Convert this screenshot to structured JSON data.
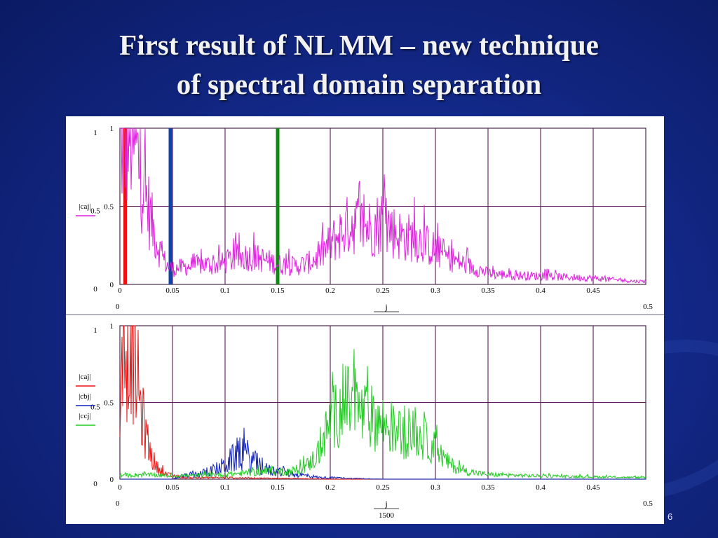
{
  "slide": {
    "title_line1": "First result of NL MM – new technique",
    "title_line2": "of spectral domain separation",
    "slide_number": "6"
  },
  "chart_data": [
    {
      "type": "line",
      "title": "",
      "xlabel": "j",
      "ylabel": "|caj|",
      "xlim": [
        0,
        0.5
      ],
      "ylim": [
        0,
        1
      ],
      "x_ticks": [
        "0",
        "0.05",
        "0.1",
        "0.15",
        "0.2",
        "0.25",
        "0.3",
        "0.35",
        "0.4",
        "0.45"
      ],
      "y_ticks": [
        "0",
        "0.5",
        "1"
      ],
      "y_outer_labels": [
        "0",
        "0.5",
        "1"
      ],
      "x_range_labels": [
        "0",
        "0.5"
      ],
      "grid": true,
      "legend": [
        {
          "label": "|caj|",
          "color": "#dd22dd"
        }
      ],
      "markers": [
        {
          "x": 0.005,
          "color": "#ee1111"
        },
        {
          "x": 0.048,
          "color": "#1144aa"
        },
        {
          "x": 0.15,
          "color": "#118811"
        }
      ],
      "series": [
        {
          "name": "|caj|",
          "color": "#dd22dd",
          "x": [
            0.005,
            0.01,
            0.015,
            0.02,
            0.025,
            0.03,
            0.035,
            0.04,
            0.045,
            0.05,
            0.06,
            0.07,
            0.08,
            0.09,
            0.1,
            0.11,
            0.12,
            0.13,
            0.14,
            0.15,
            0.16,
            0.17,
            0.18,
            0.19,
            0.2,
            0.21,
            0.22,
            0.23,
            0.24,
            0.25,
            0.26,
            0.27,
            0.28,
            0.29,
            0.3,
            0.31,
            0.32,
            0.33,
            0.34,
            0.35,
            0.37,
            0.39,
            0.41,
            0.43,
            0.45,
            0.47,
            0.49,
            0.5
          ],
          "y": [
            0.9,
            0.98,
            0.85,
            0.72,
            0.55,
            0.4,
            0.28,
            0.18,
            0.12,
            0.1,
            0.11,
            0.12,
            0.13,
            0.12,
            0.14,
            0.17,
            0.18,
            0.17,
            0.15,
            0.13,
            0.12,
            0.12,
            0.14,
            0.18,
            0.26,
            0.33,
            0.4,
            0.38,
            0.36,
            0.42,
            0.34,
            0.3,
            0.3,
            0.26,
            0.22,
            0.18,
            0.15,
            0.12,
            0.1,
            0.07,
            0.06,
            0.055,
            0.05,
            0.045,
            0.04,
            0.03,
            0.02,
            0.02
          ]
        }
      ]
    },
    {
      "type": "line",
      "title": "",
      "xlabel": "j",
      "xlabel_denominator": "1500",
      "ylabel": "",
      "xlim": [
        0,
        0.5
      ],
      "ylim": [
        0,
        1
      ],
      "x_ticks": [
        "0",
        "0.05",
        "0.1",
        "0.15",
        "0.2",
        "0.25",
        "0.3",
        "0.35",
        "0.4",
        "0.45"
      ],
      "y_ticks": [
        "0",
        "0.5",
        "1"
      ],
      "y_outer_labels": [
        "0",
        "0.5",
        "1"
      ],
      "x_range_labels": [
        "0",
        "0.5"
      ],
      "grid": true,
      "legend": [
        {
          "label": "|caj|",
          "color": "#ee1111"
        },
        {
          "label": "|cbj|",
          "color": "#1122bb"
        },
        {
          "label": "|ccj|",
          "color": "#22cc22"
        }
      ],
      "series": [
        {
          "name": "|caj|",
          "color": "#ee1111",
          "x": [
            0.0,
            0.005,
            0.01,
            0.015,
            0.02,
            0.025,
            0.03,
            0.035,
            0.04,
            0.045,
            0.05,
            0.06,
            0.1,
            0.2,
            0.3,
            0.5
          ],
          "y": [
            0.5,
            0.85,
            0.98,
            0.75,
            0.45,
            0.28,
            0.15,
            0.08,
            0.05,
            0.03,
            0.02,
            0.01,
            0.01,
            0.0,
            0.0,
            0.0
          ],
          "noise": 0.5
        },
        {
          "name": "|cbj|",
          "color": "#1122bb",
          "x": [
            0.0,
            0.05,
            0.06,
            0.07,
            0.08,
            0.09,
            0.1,
            0.11,
            0.115,
            0.12,
            0.13,
            0.14,
            0.15,
            0.16,
            0.17,
            0.18,
            0.19,
            0.2,
            0.22,
            0.25,
            0.5
          ],
          "y": [
            0.0,
            0.0,
            0.02,
            0.03,
            0.04,
            0.06,
            0.09,
            0.15,
            0.18,
            0.16,
            0.1,
            0.06,
            0.05,
            0.04,
            0.03,
            0.02,
            0.01,
            0.01,
            0.005,
            0.0,
            0.0
          ],
          "noise": 0.6
        },
        {
          "name": "|ccj|",
          "color": "#22cc22",
          "x": [
            0.0,
            0.02,
            0.05,
            0.1,
            0.12,
            0.14,
            0.15,
            0.16,
            0.17,
            0.18,
            0.19,
            0.2,
            0.21,
            0.22,
            0.23,
            0.24,
            0.25,
            0.26,
            0.27,
            0.28,
            0.29,
            0.3,
            0.31,
            0.32,
            0.33,
            0.35,
            0.4,
            0.45,
            0.5
          ],
          "y": [
            0.02,
            0.03,
            0.02,
            0.03,
            0.04,
            0.05,
            0.05,
            0.05,
            0.06,
            0.1,
            0.18,
            0.38,
            0.45,
            0.5,
            0.42,
            0.4,
            0.36,
            0.32,
            0.28,
            0.3,
            0.25,
            0.2,
            0.12,
            0.07,
            0.05,
            0.03,
            0.02,
            0.015,
            0.01
          ],
          "noise": 0.45
        }
      ]
    }
  ]
}
